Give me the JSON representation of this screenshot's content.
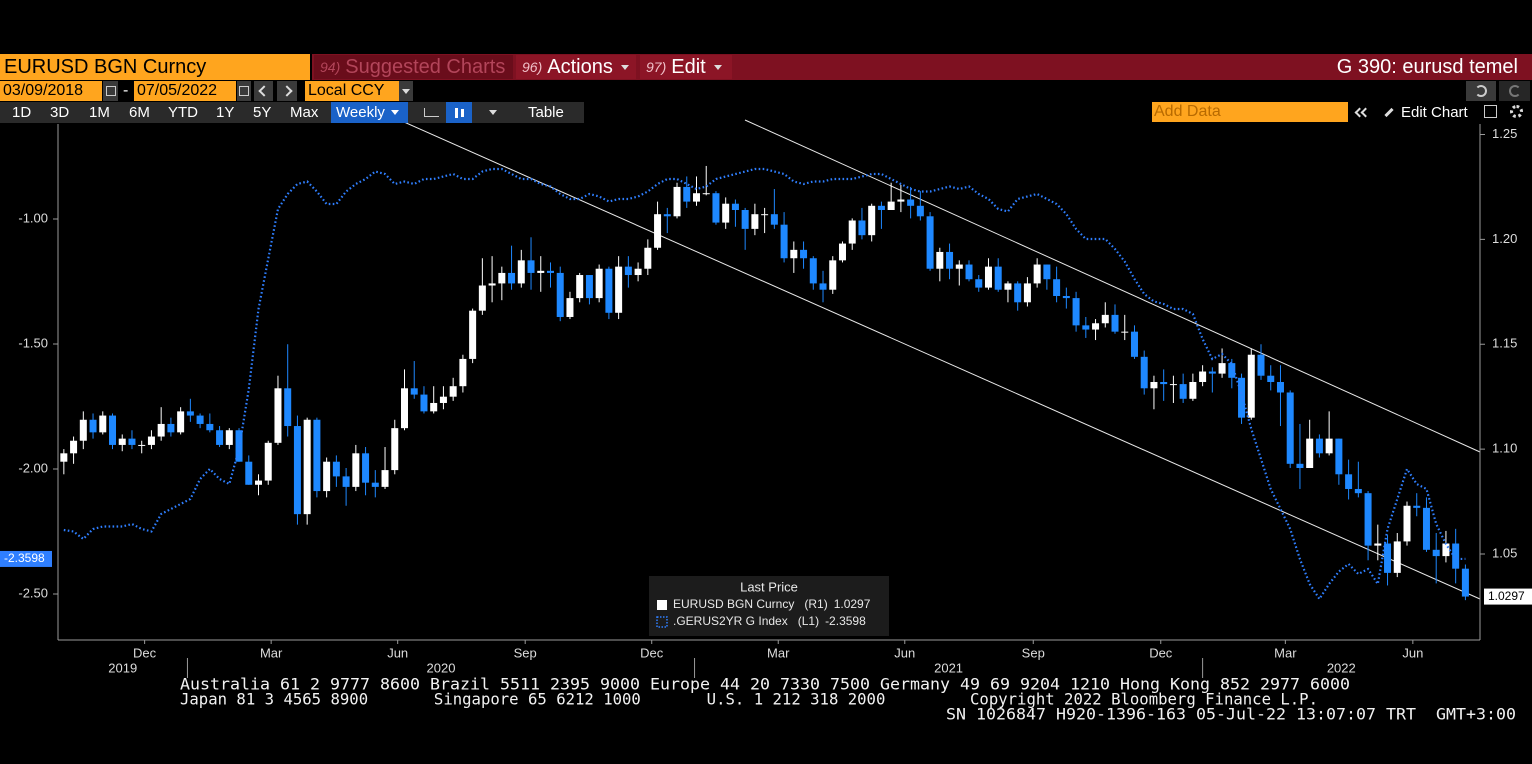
{
  "toolbar": {
    "security": "EURUSD BGN Curncy",
    "menus": [
      {
        "number": "94)",
        "label": "Suggested Charts"
      },
      {
        "number": "96)",
        "label": "Actions"
      },
      {
        "number": "97)",
        "label": "Edit"
      }
    ],
    "function_title": "G 390: eurusd temel"
  },
  "range_bar": {
    "start_date": "03/09/2018",
    "separator": "-",
    "end_date": "07/05/2022",
    "currency": "Local CCY"
  },
  "period_bar": {
    "periods": [
      "1D",
      "3D",
      "1M",
      "6M",
      "YTD",
      "1Y",
      "5Y",
      "Max"
    ],
    "frequency": "Weekly",
    "table": "Table",
    "add_data": "Add Data",
    "edit_chart": "Edit Chart"
  },
  "footer": {
    "lines": [
      "Australia 61 2 9777 8600 Brazil 5511 2395 9000 Europe 44 20 7330 7500 Germany 49 69 9204 1210 Hong Kong 852 2977 6000",
      "Japan 81 3 4565 8900       Singapore 65 6212 1000       U.S. 1 212 318 2000         Copyright 2022 Bloomberg Finance L.P.",
      "SN 1026847 H920-1396-163 05-Jul-22 13:07:07 TRT  GMT+3:00"
    ]
  },
  "chart_data": {
    "type": "candlestick",
    "grid": false,
    "legend": "bottom-center",
    "legend_title": "Last Price",
    "xlim": [
      -0.6,
      145.5
    ],
    "xticks": [
      {
        "value": 8.3,
        "label": "Dec"
      },
      {
        "value": 21.3,
        "label": "Mar"
      },
      {
        "value": 34.3,
        "label": "Jun"
      },
      {
        "value": 47.4,
        "label": "Sep"
      },
      {
        "value": 60.4,
        "label": "Dec"
      },
      {
        "value": 73.4,
        "label": "Mar"
      },
      {
        "value": 86.4,
        "label": "Jun"
      },
      {
        "value": 99.6,
        "label": "Sep"
      },
      {
        "value": 112.7,
        "label": "Dec"
      },
      {
        "value": 125.5,
        "label": "Mar"
      },
      {
        "value": 138.6,
        "label": "Jun"
      }
    ],
    "year_boundaries": [
      12.7,
      64.8,
      117.0
    ],
    "years": [
      "2019",
      "2020",
      "2021",
      "2022"
    ],
    "ylim": [
      -2.684,
      -0.62
    ],
    "yticks": [
      {
        "value": -1,
        "label": "-1.00"
      },
      {
        "value": -1.5,
        "label": "-1.50"
      },
      {
        "value": -2,
        "label": "-2.00"
      },
      {
        "value": -2.5,
        "label": "-2.50"
      }
    ],
    "y2lim": [
      1.009,
      1.255
    ],
    "y2ticks": [
      1.25,
      {
        "value": 1.2,
        "label": "1.20"
      },
      1.15,
      {
        "value": 1.1,
        "label": "1.10"
      },
      1.05
    ],
    "series": [
      {
        "name": "EURUSD BGN Curncy",
        "type": "candlestick",
        "axis": "y2",
        "axis_tag": "(R1)",
        "up_color": "#ffffff",
        "down_color": "#1e88ff",
        "open": [
          1.094,
          1.098,
          1.104,
          1.114,
          1.108,
          1.116,
          1.102,
          1.105,
          1.102,
          1.102,
          1.106,
          1.112,
          1.108,
          1.118,
          1.116,
          1.112,
          1.109,
          1.102,
          1.109,
          1.094,
          1.083,
          1.085,
          1.103,
          1.129,
          1.111,
          1.069,
          1.114,
          1.08,
          1.094,
          1.087,
          1.082,
          1.098,
          1.084,
          1.082,
          1.09,
          1.11,
          1.129,
          1.126,
          1.118,
          1.122,
          1.125,
          1.13,
          1.143,
          1.166,
          1.178,
          1.179,
          1.184,
          1.179,
          1.19,
          1.184,
          1.185,
          1.184,
          1.163,
          1.172,
          1.183,
          1.172,
          1.186,
          1.165,
          1.187,
          1.183,
          1.186,
          1.196,
          1.212,
          1.211,
          1.225,
          1.218,
          1.222,
          1.222,
          1.208,
          1.217,
          1.214,
          1.205,
          1.212,
          1.212,
          1.207,
          1.191,
          1.195,
          1.191,
          1.179,
          1.176,
          1.19,
          1.198,
          1.209,
          1.202,
          1.216,
          1.214,
          1.218,
          1.219,
          1.216,
          1.211,
          1.186,
          1.194,
          1.186,
          1.188,
          1.181,
          1.177,
          1.187,
          1.176,
          1.179,
          1.17,
          1.179,
          1.188,
          1.181,
          1.173,
          1.172,
          1.159,
          1.157,
          1.16,
          1.164,
          1.156,
          1.156,
          1.144,
          1.129,
          1.132,
          1.131,
          1.131,
          1.124,
          1.132,
          1.137,
          1.136,
          1.141,
          1.134,
          1.115,
          1.145,
          1.135,
          1.132,
          1.127,
          1.093,
          1.091,
          1.105,
          1.098,
          1.105,
          1.088,
          1.081,
          1.079,
          1.054,
          1.055,
          1.041,
          1.056,
          1.073,
          1.072,
          1.052,
          1.049,
          1.055,
          1.043
        ],
        "high": [
          1.1,
          1.106,
          1.118,
          1.117,
          1.118,
          1.117,
          1.107,
          1.109,
          1.104,
          1.109,
          1.12,
          1.115,
          1.12,
          1.124,
          1.117,
          1.117,
          1.111,
          1.11,
          1.11,
          1.097,
          1.088,
          1.104,
          1.135,
          1.15,
          1.116,
          1.115,
          1.115,
          1.096,
          1.097,
          1.091,
          1.102,
          1.101,
          1.09,
          1.101,
          1.114,
          1.138,
          1.142,
          1.13,
          1.13,
          1.13,
          1.134,
          1.145,
          1.167,
          1.191,
          1.192,
          1.187,
          1.197,
          1.195,
          1.201,
          1.192,
          1.189,
          1.187,
          1.175,
          1.184,
          1.183,
          1.188,
          1.187,
          1.192,
          1.192,
          1.189,
          1.2,
          1.218,
          1.215,
          1.227,
          1.23,
          1.23,
          1.235,
          1.223,
          1.22,
          1.219,
          1.215,
          1.217,
          1.215,
          1.224,
          1.213,
          1.199,
          1.199,
          1.192,
          1.185,
          1.192,
          1.199,
          1.21,
          1.215,
          1.217,
          1.218,
          1.227,
          1.226,
          1.225,
          1.223,
          1.213,
          1.196,
          1.198,
          1.19,
          1.19,
          1.183,
          1.191,
          1.191,
          1.18,
          1.18,
          1.182,
          1.191,
          1.188,
          1.187,
          1.177,
          1.175,
          1.163,
          1.162,
          1.17,
          1.169,
          1.164,
          1.159,
          1.147,
          1.135,
          1.138,
          1.135,
          1.136,
          1.136,
          1.14,
          1.139,
          1.148,
          1.143,
          1.136,
          1.148,
          1.15,
          1.14,
          1.14,
          1.128,
          1.112,
          1.114,
          1.107,
          1.118,
          1.105,
          1.095,
          1.094,
          1.08,
          1.064,
          1.059,
          1.06,
          1.075,
          1.079,
          1.077,
          1.06,
          1.061,
          1.062,
          1.045
        ],
        "low": [
          1.088,
          1.093,
          1.1,
          1.105,
          1.107,
          1.1,
          1.099,
          1.1,
          1.098,
          1.1,
          1.104,
          1.106,
          1.107,
          1.113,
          1.11,
          1.108,
          1.101,
          1.1,
          1.094,
          1.083,
          1.078,
          1.083,
          1.102,
          1.106,
          1.064,
          1.064,
          1.077,
          1.077,
          1.082,
          1.073,
          1.08,
          1.078,
          1.077,
          1.081,
          1.088,
          1.109,
          1.124,
          1.117,
          1.117,
          1.119,
          1.123,
          1.127,
          1.141,
          1.164,
          1.17,
          1.171,
          1.176,
          1.177,
          1.176,
          1.175,
          1.177,
          1.161,
          1.162,
          1.17,
          1.169,
          1.17,
          1.162,
          1.162,
          1.177,
          1.18,
          1.183,
          1.195,
          1.203,
          1.21,
          1.215,
          1.216,
          1.221,
          1.207,
          1.205,
          1.206,
          1.195,
          1.202,
          1.203,
          1.205,
          1.189,
          1.184,
          1.186,
          1.176,
          1.17,
          1.174,
          1.189,
          1.195,
          1.2,
          1.199,
          1.205,
          1.214,
          1.213,
          1.21,
          1.209,
          1.185,
          1.18,
          1.181,
          1.178,
          1.18,
          1.175,
          1.176,
          1.175,
          1.17,
          1.166,
          1.168,
          1.177,
          1.176,
          1.17,
          1.167,
          1.156,
          1.153,
          1.152,
          1.158,
          1.155,
          1.152,
          1.143,
          1.126,
          1.119,
          1.123,
          1.122,
          1.122,
          1.123,
          1.13,
          1.127,
          1.134,
          1.129,
          1.112,
          1.114,
          1.133,
          1.128,
          1.111,
          1.091,
          1.081,
          1.091,
          1.096,
          1.097,
          1.083,
          1.076,
          1.077,
          1.047,
          1.047,
          1.035,
          1.039,
          1.054,
          1.068,
          1.051,
          1.036,
          1.046,
          1.036,
          1.028
        ],
        "close": [
          1.098,
          1.104,
          1.114,
          1.108,
          1.116,
          1.102,
          1.105,
          1.102,
          1.102,
          1.106,
          1.112,
          1.108,
          1.118,
          1.116,
          1.112,
          1.109,
          1.102,
          1.109,
          1.094,
          1.083,
          1.085,
          1.103,
          1.129,
          1.111,
          1.069,
          1.114,
          1.08,
          1.094,
          1.087,
          1.082,
          1.098,
          1.084,
          1.082,
          1.09,
          1.11,
          1.129,
          1.126,
          1.118,
          1.122,
          1.125,
          1.13,
          1.143,
          1.166,
          1.178,
          1.179,
          1.184,
          1.179,
          1.19,
          1.184,
          1.185,
          1.184,
          1.163,
          1.172,
          1.183,
          1.172,
          1.186,
          1.165,
          1.187,
          1.183,
          1.186,
          1.196,
          1.212,
          1.211,
          1.225,
          1.218,
          1.222,
          1.222,
          1.208,
          1.217,
          1.214,
          1.205,
          1.212,
          1.212,
          1.207,
          1.191,
          1.195,
          1.191,
          1.179,
          1.176,
          1.19,
          1.198,
          1.209,
          1.202,
          1.216,
          1.214,
          1.218,
          1.219,
          1.216,
          1.211,
          1.186,
          1.194,
          1.186,
          1.188,
          1.181,
          1.177,
          1.187,
          1.176,
          1.179,
          1.17,
          1.179,
          1.188,
          1.181,
          1.173,
          1.172,
          1.159,
          1.157,
          1.16,
          1.164,
          1.156,
          1.156,
          1.144,
          1.129,
          1.132,
          1.131,
          1.131,
          1.124,
          1.132,
          1.137,
          1.136,
          1.141,
          1.134,
          1.115,
          1.145,
          1.135,
          1.132,
          1.127,
          1.093,
          1.091,
          1.105,
          1.098,
          1.105,
          1.088,
          1.081,
          1.079,
          1.054,
          1.055,
          1.041,
          1.056,
          1.073,
          1.072,
          1.052,
          1.049,
          1.055,
          1.043,
          1.0297
        ]
      },
      {
        "name": ".GERUS2YR G Index",
        "type": "line",
        "axis": "y",
        "axis_tag": "(L1)",
        "color": "#2f7fff",
        "line_style": "dotted",
        "values": [
          -2.244,
          -2.25,
          -2.28,
          -2.24,
          -2.23,
          -2.23,
          -2.23,
          -2.22,
          -2.24,
          -2.25,
          -2.18,
          -2.16,
          -2.14,
          -2.12,
          -2.04,
          -2.0,
          -2.04,
          -2.06,
          -1.92,
          -1.68,
          -1.36,
          -1.16,
          -0.96,
          -0.9,
          -0.86,
          -0.85,
          -0.89,
          -0.94,
          -0.94,
          -0.89,
          -0.86,
          -0.84,
          -0.81,
          -0.82,
          -0.86,
          -0.85,
          -0.86,
          -0.84,
          -0.84,
          -0.83,
          -0.82,
          -0.84,
          -0.84,
          -0.81,
          -0.8,
          -0.8,
          -0.82,
          -0.84,
          -0.84,
          -0.86,
          -0.87,
          -0.9,
          -0.92,
          -0.92,
          -0.9,
          -0.91,
          -0.93,
          -0.92,
          -0.92,
          -0.91,
          -0.89,
          -0.86,
          -0.84,
          -0.84,
          -0.86,
          -0.88,
          -0.87,
          -0.84,
          -0.83,
          -0.82,
          -0.81,
          -0.8,
          -0.8,
          -0.81,
          -0.82,
          -0.85,
          -0.86,
          -0.85,
          -0.85,
          -0.84,
          -0.84,
          -0.84,
          -0.83,
          -0.82,
          -0.82,
          -0.84,
          -0.86,
          -0.88,
          -0.89,
          -0.89,
          -0.88,
          -0.87,
          -0.88,
          -0.87,
          -0.9,
          -0.92,
          -0.96,
          -0.97,
          -0.92,
          -0.91,
          -0.9,
          -0.92,
          -0.94,
          -0.98,
          -1.04,
          -1.08,
          -1.08,
          -1.08,
          -1.12,
          -1.17,
          -1.24,
          -1.3,
          -1.33,
          -1.34,
          -1.36,
          -1.36,
          -1.38,
          -1.48,
          -1.56,
          -1.54,
          -1.58,
          -1.7,
          -1.84,
          -1.96,
          -2.08,
          -2.16,
          -2.24,
          -2.36,
          -2.46,
          -2.52,
          -2.46,
          -2.41,
          -2.38,
          -2.42,
          -2.4,
          -2.46,
          -2.24,
          -2.12,
          -2.0,
          -2.06,
          -2.08,
          -2.22,
          -2.3,
          -2.36,
          -2.3598
        ]
      }
    ]
  }
}
